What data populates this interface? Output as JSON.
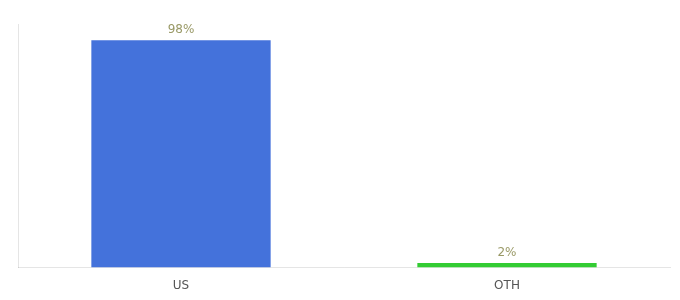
{
  "chart_data": {
    "type": "bar",
    "categories": [
      "US",
      "OTH"
    ],
    "values": [
      98,
      2
    ],
    "value_labels": [
      "98%",
      "2%"
    ],
    "colors": [
      "#4472db",
      "#33cc33"
    ],
    "ylim": [
      0,
      105
    ],
    "yticks": [],
    "grid": false,
    "data_labels": true,
    "tick_labels": "x"
  }
}
